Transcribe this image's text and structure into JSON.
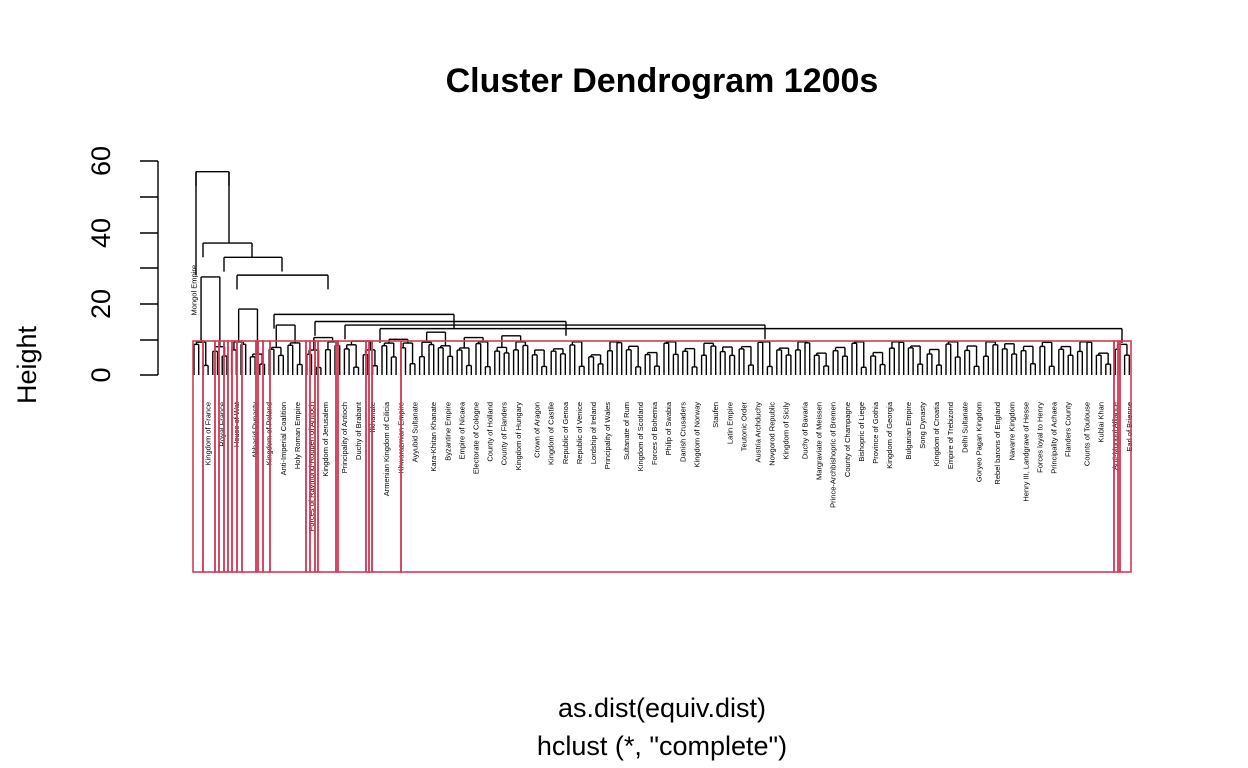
{
  "chart_data": {
    "type": "dendrogram",
    "title": "Cluster Dendrogram 1200s",
    "ylabel": "Height",
    "xlabel": "as.dist(equiv.dist)",
    "sub": "hclust (*, \"complete\")",
    "ylim": [
      0,
      60
    ],
    "yticks": [
      "0",
      "20",
      "40",
      "60"
    ],
    "rect_color": "#d33b57",
    "leaves": [
      "Mongol Empire",
      "Kingdom of France",
      "Royal France",
      "House of Wat",
      "Abbasid Dynasty",
      "Kingdom of Poland",
      "Anti-Imperial Coalition",
      "Holy Roman Empire",
      "Forces of Raymond-Roupen of Antioch",
      "Kingdom of Jerusalem",
      "Principality of Antioch",
      "Duchy of Brabant",
      "Ilkhanate",
      "Armenian Kingdom of Cilicia",
      "Khwarazmian Empire",
      "Ayyubid Sultanate",
      "Kara-Khitan Khanate",
      "Byzantine Empire",
      "Empire of Nicaea",
      "Electorate of Cologne",
      "County of Holland",
      "County of Flanders",
      "Kingdom of Hungary",
      "Crown of Aragon",
      "Kingdom of Castile",
      "Republic of Genoa",
      "Republic of Venice",
      "Lordship of Ireland",
      "Principality of Wales",
      "Sultanate of Rum",
      "Kingdom of Scotland",
      "Forces of Bohemia",
      "Philip of Swabia",
      "Danish Crusaders",
      "Kingdom of Norway",
      "Staufen",
      "Latin Empire",
      "Teutonic Order",
      "Austria Archduchy",
      "Novgorod Republic",
      "Kingdom of Sicily",
      "Duchy of Bavaria",
      "Margraviate of Meissen",
      "Prince-Archbishopric of Bremen",
      "County of Champagne",
      "Bishopric of Liege",
      "Province of Gothia",
      "Kingdom of Georgia",
      "Bulgarian Empire",
      "Song Dynasty",
      "Kingdom of Croatia",
      "Empire of Trebizond",
      "Delhi Sultanate",
      "Goryeo Pagan Kingdom",
      "Rebel barons of England",
      "Navarre Kingdom",
      "Henry III, Landgrave of Hesse",
      "Forces loyal to Henry",
      "Principality of Achaea",
      "Flanders County",
      "Counts of Toulouse",
      "Kublai Khan",
      "Anti-Mongol Alliance",
      "Earl of Brienne"
    ]
  }
}
